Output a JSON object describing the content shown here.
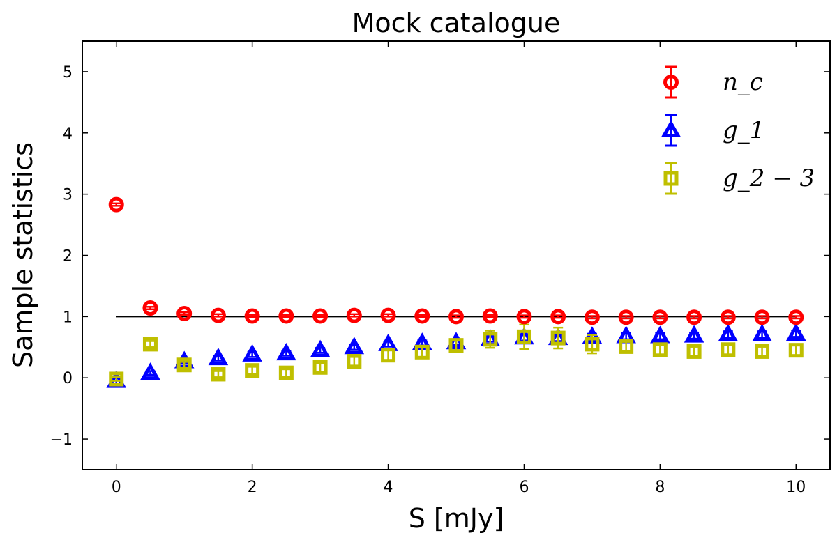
{
  "chart_data": {
    "type": "scatter",
    "title": "Mock catalogue",
    "xlabel": "S [mJy]",
    "ylabel": "Sample statistics",
    "xlim": [
      -0.5,
      10.5
    ],
    "ylim": [
      -1.5,
      5.5
    ],
    "xticks": [
      0,
      2,
      4,
      6,
      8,
      10
    ],
    "yticks": [
      -1,
      0,
      1,
      2,
      3,
      4,
      5
    ],
    "xtick_labels": [
      "0",
      "2",
      "4",
      "6",
      "8",
      "10"
    ],
    "ytick_labels": [
      "−1",
      "0",
      "1",
      "2",
      "3",
      "4",
      "5"
    ],
    "grid": false,
    "legend_position": "top-right",
    "reference_line": {
      "y": 1,
      "x_range": [
        0,
        10
      ],
      "color": "#000000"
    },
    "x": [
      0,
      0.5,
      1,
      1.5,
      2,
      2.5,
      3,
      3.5,
      4,
      4.5,
      5,
      5.5,
      6,
      6.5,
      7,
      7.5,
      8,
      8.5,
      9,
      9.5,
      10
    ],
    "series": [
      {
        "name": "n_c",
        "marker": "circle",
        "color": "#ff0000",
        "values": [
          2.83,
          1.14,
          1.05,
          1.02,
          1.01,
          1.01,
          1.01,
          1.02,
          1.02,
          1.01,
          1.0,
          1.01,
          1.0,
          1.0,
          0.99,
          0.99,
          0.99,
          0.99,
          0.99,
          0.99,
          0.99
        ],
        "errors": [
          0.02,
          0.02,
          0.02,
          0.02,
          0.02,
          0.02,
          0.02,
          0.02,
          0.02,
          0.02,
          0.02,
          0.02,
          0.02,
          0.02,
          0.02,
          0.02,
          0.02,
          0.02,
          0.02,
          0.02,
          0.02
        ]
      },
      {
        "name": "g_1",
        "marker": "triangle",
        "color": "#0000ff",
        "values": [
          -0.05,
          0.08,
          0.27,
          0.32,
          0.38,
          0.4,
          0.45,
          0.5,
          0.55,
          0.57,
          0.58,
          0.63,
          0.66,
          0.65,
          0.67,
          0.68,
          0.68,
          0.69,
          0.71,
          0.71,
          0.72
        ],
        "errors": [
          0.06,
          0.03,
          0.03,
          0.04,
          0.04,
          0.04,
          0.04,
          0.04,
          0.04,
          0.04,
          0.04,
          0.04,
          0.05,
          0.05,
          0.05,
          0.05,
          0.05,
          0.05,
          0.05,
          0.05,
          0.05
        ]
      },
      {
        "name": "g_2 − 3",
        "marker": "square",
        "color": "#bfbf00",
        "values": [
          -0.02,
          0.55,
          0.21,
          0.06,
          0.12,
          0.08,
          0.17,
          0.27,
          0.37,
          0.42,
          0.53,
          0.63,
          0.67,
          0.65,
          0.55,
          0.51,
          0.46,
          0.43,
          0.46,
          0.43,
          0.45
        ],
        "errors": [
          0.03,
          0.05,
          0.05,
          0.05,
          0.06,
          0.06,
          0.07,
          0.07,
          0.09,
          0.09,
          0.1,
          0.14,
          0.2,
          0.17,
          0.15,
          0.1,
          0.1,
          0.09,
          0.09,
          0.1,
          0.09
        ]
      }
    ]
  }
}
